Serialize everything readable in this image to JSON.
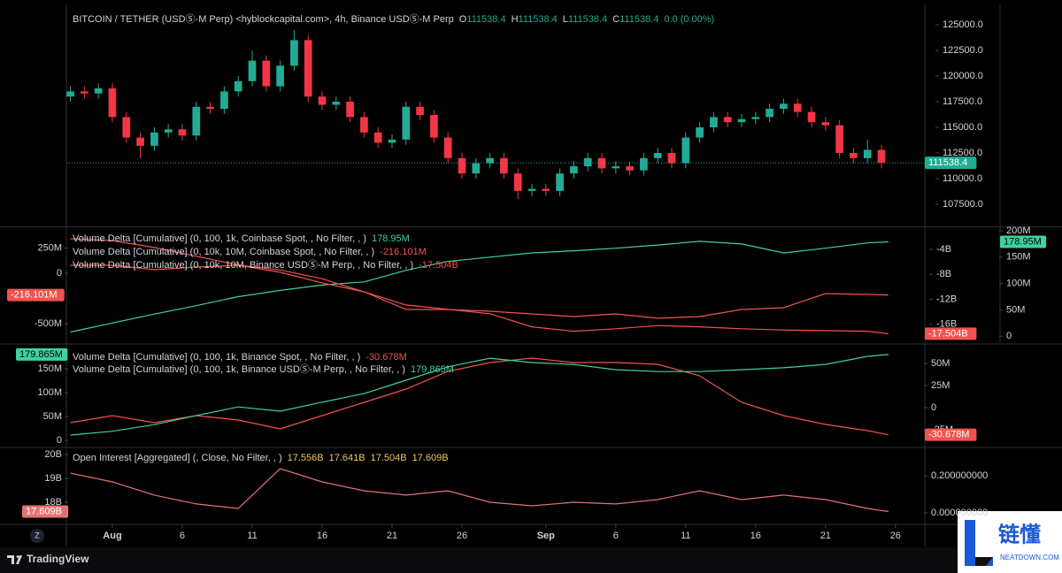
{
  "chart_data": [
    {
      "type": "candlestick",
      "title": "BITCOIN / TETHER (USDⓈ-M Perp) <hyblockcapital.com>, 4h, Binance USDⓈ-M Perp",
      "ohlc_legend": [
        {
          "key": "O",
          "value": 111538.4
        },
        {
          "key": "H",
          "value": 111538.4
        },
        {
          "key": "L",
          "value": 111538.4
        },
        {
          "key": "C",
          "value": 111538.4
        }
      ],
      "change": "0.0 (0.00%)",
      "x": [
        -2,
        -1,
        0,
        1,
        2,
        3,
        4,
        5,
        6,
        7,
        8,
        9,
        10,
        11,
        12,
        13,
        14,
        15,
        16,
        17,
        18,
        19,
        20,
        21,
        22,
        23,
        24,
        25,
        26,
        27,
        28,
        29,
        30,
        31,
        32,
        33,
        34,
        35,
        36,
        37,
        38,
        39,
        40,
        41,
        42,
        43,
        44,
        45,
        46,
        47,
        48,
        49,
        50,
        51,
        52,
        53,
        54,
        55,
        56
      ],
      "open": [
        118000,
        118500,
        118300,
        118800,
        116000,
        114000,
        113200,
        114500,
        114800,
        114200,
        117000,
        116800,
        118500,
        119500,
        121500,
        119000,
        121000,
        123500,
        118000,
        117200,
        117500,
        116000,
        114500,
        113500,
        113800,
        117000,
        116200,
        114000,
        112000,
        110500,
        111500,
        112000,
        110500,
        108800,
        109000,
        108800,
        110500,
        111200,
        112000,
        111000,
        111200,
        110800,
        112000,
        112500,
        111500,
        114000,
        115000,
        116000,
        115500,
        115800,
        116000,
        116800,
        117300,
        116500,
        115500,
        115200,
        112500,
        112000,
        112800
      ],
      "high": [
        119000,
        119000,
        119300,
        119300,
        116500,
        114500,
        115000,
        115300,
        115300,
        117500,
        117500,
        119000,
        120000,
        122500,
        122000,
        121500,
        124500,
        124000,
        118500,
        118000,
        118000,
        116500,
        115000,
        114300,
        117500,
        117500,
        116700,
        114500,
        112500,
        112000,
        112500,
        112500,
        111000,
        109500,
        109500,
        111000,
        111700,
        112500,
        112500,
        111700,
        111700,
        112500,
        113000,
        113000,
        114500,
        115500,
        116500,
        116500,
        116300,
        116500,
        117300,
        117800,
        117800,
        117000,
        116000,
        115700,
        113000,
        113800,
        113300
      ],
      "low": [
        117500,
        117800,
        117800,
        115500,
        113500,
        112000,
        112700,
        114000,
        113700,
        113700,
        116300,
        116300,
        118000,
        119000,
        118500,
        118500,
        120500,
        117500,
        116700,
        116700,
        115500,
        114000,
        113000,
        113000,
        113300,
        115700,
        113500,
        111500,
        110000,
        110000,
        111000,
        110000,
        108000,
        108300,
        108300,
        108300,
        110000,
        110700,
        110500,
        110500,
        110300,
        110300,
        111500,
        111000,
        111000,
        113500,
        114500,
        115000,
        115000,
        115300,
        115500,
        116300,
        116000,
        115000,
        114700,
        112000,
        111500,
        111500,
        111000
      ],
      "close": [
        118500,
        118300,
        118800,
        116000,
        114000,
        113200,
        114500,
        114800,
        114200,
        117000,
        116800,
        118500,
        119500,
        121500,
        119000,
        121000,
        123500,
        118000,
        117200,
        117500,
        116000,
        114500,
        113500,
        113800,
        117000,
        116200,
        114000,
        112000,
        110500,
        111500,
        112000,
        110500,
        108800,
        109000,
        108800,
        110500,
        111200,
        112000,
        111000,
        111200,
        110800,
        112000,
        112500,
        111500,
        114000,
        115000,
        116000,
        115500,
        115800,
        116000,
        116800,
        117300,
        116500,
        115500,
        115200,
        112500,
        112000,
        112800,
        111538.4
      ],
      "up_color": "#22ab94",
      "down_color": "#f23645",
      "ylim": [
        105430,
        126980
      ],
      "yticks": [
        {
          "value": 107500,
          "label": "107500.0"
        },
        {
          "value": 110000,
          "label": "110000.0"
        },
        {
          "value": 112500,
          "label": "112500.0"
        },
        {
          "value": 115000,
          "label": "115000.0"
        },
        {
          "value": 117500,
          "label": "117500.0"
        },
        {
          "value": 120000,
          "label": "120000.0"
        },
        {
          "value": 122500,
          "label": "122500.0"
        },
        {
          "value": 125000,
          "label": "125000.0"
        }
      ]
    },
    {
      "type": "line",
      "x": [
        -2,
        1,
        4,
        7,
        10,
        13,
        16,
        19,
        22,
        25,
        28,
        31,
        34,
        37,
        40,
        43,
        46,
        49,
        52,
        55,
        56.5
      ],
      "ylim": [
        -693,
        447
      ],
      "yticks": [
        {
          "value": 250,
          "label": "250M"
        },
        0,
        {
          "value": -500,
          "label": "-500M"
        }
      ],
      "y2lim": [
        -19,
        -0.6
      ],
      "y2ticks": [
        {
          "value": -4,
          "label": "-4B"
        },
        {
          "value": -8,
          "label": "-8B"
        },
        {
          "value": -12,
          "label": "-12B"
        },
        {
          "value": -16,
          "label": "-16B"
        }
      ],
      "y3lim": [
        -13,
        205
      ],
      "y3ticks": [
        {
          "value": 200,
          "label": "200M"
        },
        {
          "value": 150,
          "label": "150M"
        },
        {
          "value": 100,
          "label": "100M"
        },
        {
          "value": 50,
          "label": "50M"
        },
        0
      ],
      "series": [
        {
          "name": "Volume Delta [Cumulative] (0, 100, 1k, Coinbase Spot, , No Filter, , )",
          "color": "#3fd1a0",
          "axis": "y3",
          "values": [
            8,
            25,
            42,
            58,
            75,
            87,
            97,
            103,
            125,
            142,
            150,
            158,
            162,
            167,
            173,
            180,
            175,
            158,
            167,
            177,
            178.95
          ],
          "value_label": "178.95M"
        },
        {
          "name": "Volume Delta [Cumulative] (0, 10k, 10M, Coinbase Spot, , No Filter, , )",
          "color": "#f05350",
          "axis": "y",
          "values": [
            79,
            79,
            35,
            61,
            79,
            9,
            -96,
            -184,
            -360,
            -360,
            -377,
            -404,
            -430,
            -404,
            -447,
            -430,
            -360,
            -342,
            -202,
            -211,
            -216.101
          ],
          "value_label": "-216.101M"
        },
        {
          "name": "Volume Delta [Cumulative] (0, 10k, 10M, Binance USDⓈ-M Perp, , No Filter, , )",
          "color": "#f05350",
          "axis": "y2",
          "values": [
            -2.3,
            -2.6,
            -3.7,
            -5.1,
            -6.5,
            -7.3,
            -8.7,
            -10.8,
            -12.9,
            -13.6,
            -14.3,
            -16.4,
            -17.1,
            -16.7,
            -16.2,
            -16.4,
            -16.7,
            -16.9,
            -17.0,
            -17.1,
            -17.504
          ],
          "value_label": "-17.504B"
        }
      ]
    },
    {
      "type": "line",
      "x": [
        -2,
        1,
        4,
        7,
        10,
        13,
        16,
        19,
        22,
        25,
        28,
        31,
        34,
        37,
        40,
        43,
        46,
        49,
        52,
        55,
        56.5
      ],
      "ylim": [
        -13,
        200
      ],
      "yticks": [
        {
          "value": 150,
          "label": "150M"
        },
        {
          "value": 100,
          "label": "100M"
        },
        {
          "value": 50,
          "label": "50M"
        },
        0
      ],
      "y2lim": [
        -44,
        71
      ],
      "y2ticks": [
        {
          "value": 50,
          "label": "50M"
        },
        {
          "value": 25,
          "label": "25M"
        },
        0,
        {
          "value": -25,
          "label": "-25M"
        }
      ],
      "series": [
        {
          "name": "Volume Delta [Cumulative] (0, 100, 1k, Binance Spot, , No Filter, , )",
          "color": "#f05350",
          "axis": "y2",
          "values": [
            -17,
            -9,
            -17,
            -9,
            -14,
            -24,
            -9,
            6,
            21,
            41,
            51,
            56,
            51,
            51,
            49,
            36,
            6,
            -9,
            -19,
            -26,
            -30.678
          ],
          "value_label": "-30.678M"
        },
        {
          "name": "Volume Delta [Cumulative] (0, 100, 1k, Binance USDⓈ-M Perp, , No Filter, , )",
          "color": "#3fd1a0",
          "axis": "y",
          "values": [
            11,
            19,
            33,
            52,
            70,
            61,
            80,
            98,
            126,
            154,
            172,
            163,
            159,
            148,
            144,
            144,
            148,
            152,
            159,
            176,
            179.865
          ],
          "value_label": "179.865M"
        }
      ]
    },
    {
      "type": "line",
      "x": [
        -2,
        1,
        4,
        7,
        10,
        13,
        16,
        19,
        22,
        25,
        28,
        31,
        34,
        37,
        40,
        43,
        46,
        49,
        52,
        55,
        56.5
      ],
      "ylim": [
        17.11,
        20.26
      ],
      "yticks": [
        {
          "value": 20,
          "label": "20B"
        },
        {
          "value": 19,
          "label": "19B"
        },
        {
          "value": 18,
          "label": "18B"
        }
      ],
      "y2lim": [
        -0.057,
        0.348
      ],
      "y2ticks": [
        {
          "value": 0.2,
          "label": "0.200000000"
        },
        {
          "value": 0,
          "label": "0.000000000"
        }
      ],
      "series": [
        {
          "name": "Open Interest [Aggregated] (, Close, No Filter, , )",
          "color": "#e57373",
          "axis": "y",
          "values": [
            19.22,
            18.85,
            18.3,
            17.93,
            17.74,
            19.41,
            18.85,
            18.48,
            18.3,
            18.48,
            18.0,
            17.85,
            18.0,
            17.93,
            18.11,
            18.48,
            18.11,
            18.3,
            18.11,
            17.74,
            17.609
          ],
          "value_label": "17.609B",
          "legend_values": [
            "17.556B",
            "17.641B",
            "17.504B",
            "17.609B"
          ],
          "legend_color": "#f0c75e"
        }
      ]
    }
  ],
  "x_axis": {
    "xlim": [
      -2.29,
      59.1
    ],
    "xticks": [
      {
        "value": 1,
        "label": "Aug"
      },
      6,
      11,
      16,
      21,
      26,
      {
        "value": 32,
        "label": "Sep"
      },
      {
        "value": 37,
        "label": "6"
      },
      {
        "value": 42,
        "label": "11"
      },
      {
        "value": 47,
        "label": "16"
      },
      {
        "value": 52,
        "label": "21"
      },
      {
        "value": 57,
        "label": "26"
      }
    ]
  },
  "footer": {
    "button": "Z",
    "brand": "TradingView"
  },
  "watermark": {
    "title": "链懂",
    "subtitle": "NEATDOWN.COM"
  }
}
